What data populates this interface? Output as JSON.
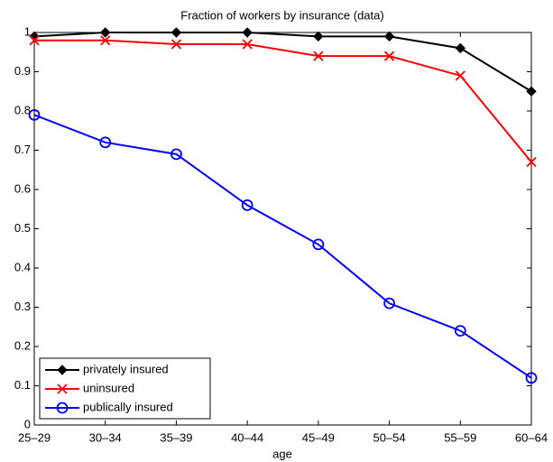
{
  "chart_data": {
    "type": "line",
    "title": "Fraction of workers by insurance (data)",
    "x_label": "age",
    "categories": [
      "25–29",
      "30–34",
      "35–39",
      "40–44",
      "45–49",
      "50–54",
      "55–59",
      "60–64"
    ],
    "series": [
      {
        "name": "privately insured",
        "color": "#000000",
        "marker": "diamond",
        "values": [
          0.99,
          1.0,
          1.0,
          1.0,
          0.99,
          0.99,
          0.96,
          0.85
        ]
      },
      {
        "name": "uninsured",
        "color": "#ff0000",
        "marker": "x",
        "values": [
          0.98,
          0.98,
          0.97,
          0.97,
          0.94,
          0.94,
          0.89,
          0.67
        ]
      },
      {
        "name": "publically insured",
        "color": "#0000ff",
        "marker": "circle",
        "values": [
          0.79,
          0.72,
          0.69,
          0.56,
          0.46,
          0.31,
          0.24,
          0.12
        ]
      }
    ],
    "ylim": [
      0,
      1
    ],
    "yticks": [
      0,
      0.1,
      0.2,
      0.3,
      0.4,
      0.5,
      0.6,
      0.7,
      0.8,
      0.9,
      1
    ],
    "grid": false,
    "legend": "lower left"
  }
}
